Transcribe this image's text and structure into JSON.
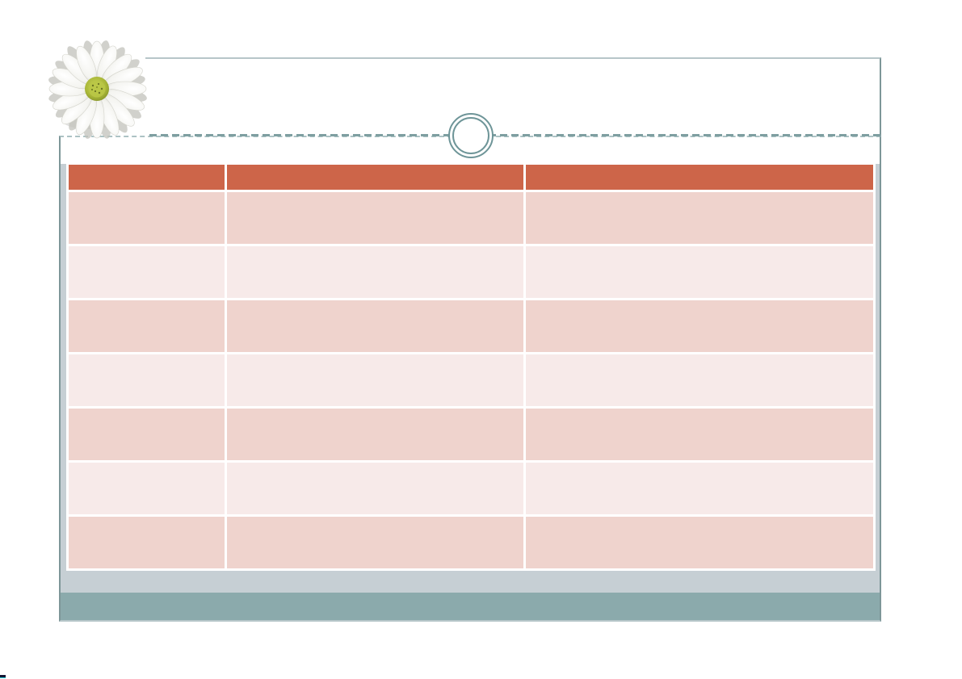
{
  "slide": {
    "kind": "presentation-slide",
    "visible_text": "none",
    "decorations": {
      "flower_image": "white-daisy-photo",
      "divider": "dashed-line-with-double-ring-ornament",
      "footer": "silver-panel-and-teal-band"
    }
  },
  "colors": {
    "table-header-bg": "#cd6549",
    "row-dark": "#efd3cd",
    "row-light": "#f7eae9",
    "panel-silver": "#c6cfd4",
    "band-teal": "#8baaac",
    "border-dark": "#7d9698",
    "border-light": "#b7c6c9",
    "dash-teal": "#7e9fa1",
    "dash-light": "#acc2c4",
    "ring-teal": "#6e9598",
    "table-gap": "#ffffff",
    "artifact-dark": "#141432",
    "artifact-cyan": "#1ec8d4"
  },
  "table": {
    "column_count": 3,
    "row_count": 7,
    "header_cells": [
      "",
      "",
      ""
    ],
    "rows": [
      [
        "",
        "",
        ""
      ],
      [
        "",
        "",
        ""
      ],
      [
        "",
        "",
        ""
      ],
      [
        "",
        "",
        ""
      ],
      [
        "",
        "",
        ""
      ],
      [
        "",
        "",
        ""
      ],
      [
        "",
        "",
        ""
      ]
    ]
  }
}
